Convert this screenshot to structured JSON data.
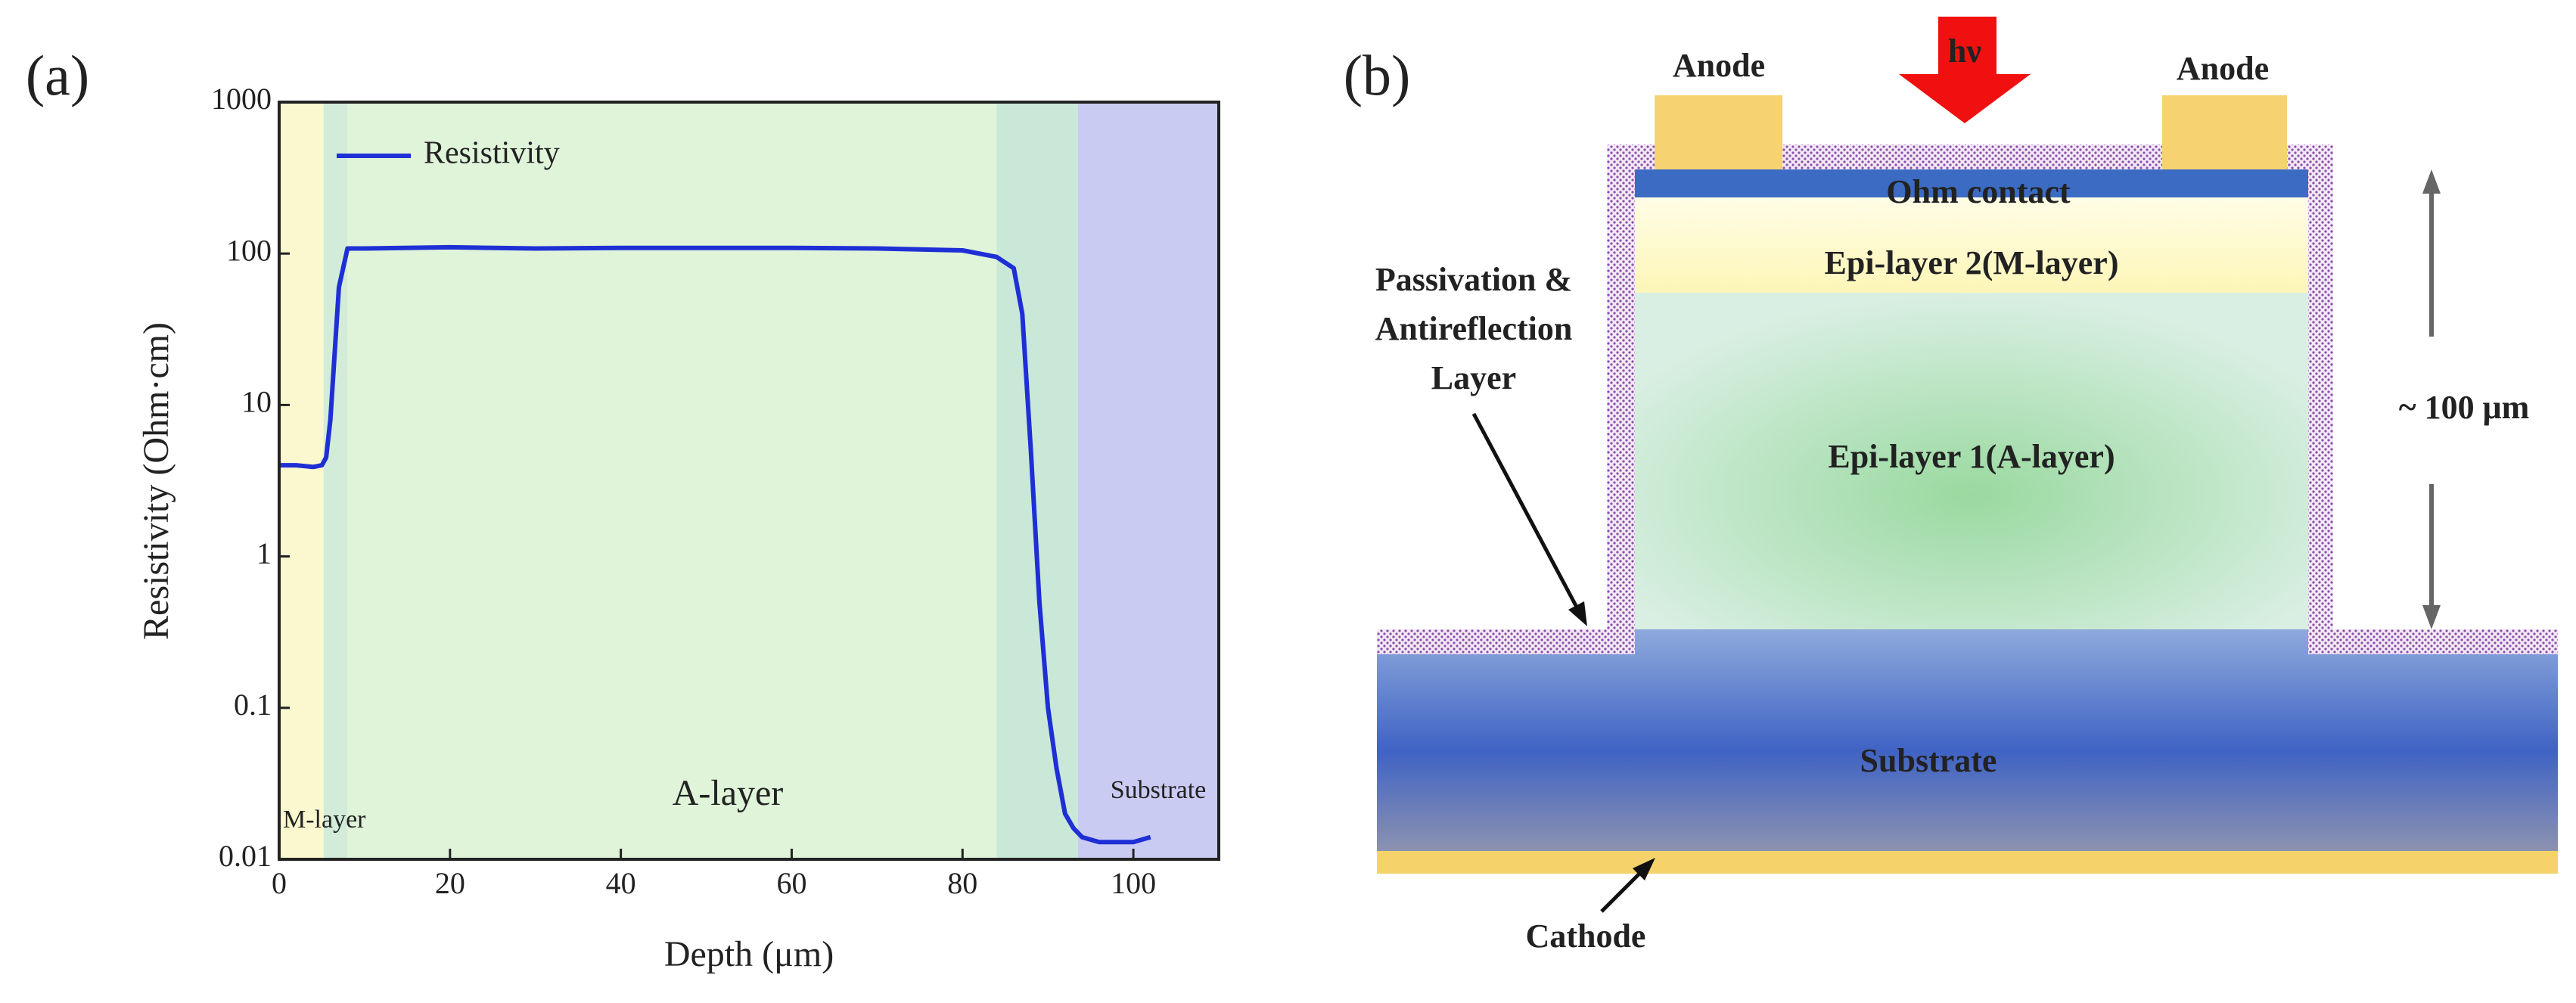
{
  "chart_data": {
    "type": "line",
    "label": "(a)",
    "xlabel": "Depth (μm)",
    "ylabel": "Resistivity (Ohm·cm)",
    "xlim": [
      0,
      110
    ],
    "xticks": [
      0,
      20,
      40,
      60,
      80,
      100
    ],
    "ylim": [
      0.01,
      1000
    ],
    "yticks": [
      0.01,
      0.1,
      1,
      10,
      100,
      1000
    ],
    "log": true,
    "x": [
      0,
      2,
      4,
      5,
      5.5,
      6,
      7,
      8,
      10,
      20,
      30,
      40,
      50,
      60,
      70,
      80,
      84,
      86,
      87,
      88,
      89,
      90,
      91,
      92,
      93,
      94,
      96,
      98,
      100,
      102
    ],
    "series": [
      {
        "name": "Resistivity",
        "color": "#1f2fd6",
        "values": [
          4,
          4,
          3.9,
          4,
          4.5,
          8,
          60,
          108,
          108,
          110,
          108,
          109,
          109,
          109,
          108,
          105,
          95,
          80,
          40,
          5,
          0.5,
          0.1,
          0.04,
          0.02,
          0.016,
          0.014,
          0.013,
          0.013,
          0.013,
          0.014
        ]
      }
    ],
    "regions": [
      {
        "label": "M-layer",
        "start": 0,
        "end": 5.2,
        "color": "#fbf8cf"
      },
      {
        "label": null,
        "start": 5.2,
        "end": 8,
        "color": "#d3ecd9"
      },
      {
        "label": "A-layer",
        "start": 8,
        "end": 84,
        "color": "#dff4d9"
      },
      {
        "label": null,
        "start": 84,
        "end": 93.5,
        "color": "#c9e8d8"
      },
      {
        "label": "Substrate",
        "start": 93.5,
        "end": 110,
        "color": "#cacbf2"
      }
    ],
    "legend": "upper left"
  },
  "diagram": {
    "label": "(b)",
    "anode_left": "Anode",
    "anode_right": "Anode",
    "light": "hν",
    "ohm_contact": "Ohm contact",
    "epi2": "Epi-layer 2(M-layer)",
    "epi1": "Epi-layer 1(A-layer)",
    "substrate": "Substrate",
    "cathode": "Cathode",
    "passivation": [
      "Passivation &",
      "Antireflection",
      "Layer"
    ],
    "thickness": "~ 100 μm"
  }
}
